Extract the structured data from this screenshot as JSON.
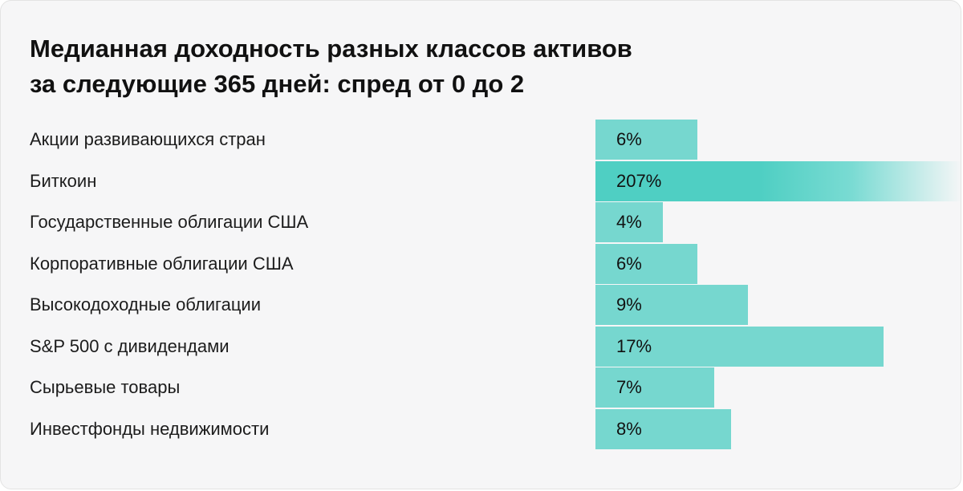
{
  "chart_data": {
    "type": "bar",
    "orientation": "horizontal",
    "title": "Медианная доходность разных классов активов\nза следующие 365 дней: спред от 0 до 2",
    "categories": [
      "Акции развивающихся стран",
      "Биткоин",
      "Государственные облигации США",
      "Корпоративные облигации США",
      "Высокодоходные облигации",
      "S&P 500 с дивидендами",
      "Сырьевые товары",
      "Инвестфонды недвижимости"
    ],
    "values": [
      6,
      207,
      4,
      6,
      9,
      17,
      7,
      8
    ],
    "value_labels": [
      "6%",
      "207%",
      "4%",
      "6%",
      "9%",
      "17%",
      "7%",
      "8%"
    ],
    "unit": "%",
    "truncated_bars": [
      1
    ],
    "grid": false,
    "legend": "none",
    "colors": {
      "bar": "#76d7cf",
      "bar_highlight": "#4fcfc3",
      "background": "#f6f6f7"
    }
  }
}
